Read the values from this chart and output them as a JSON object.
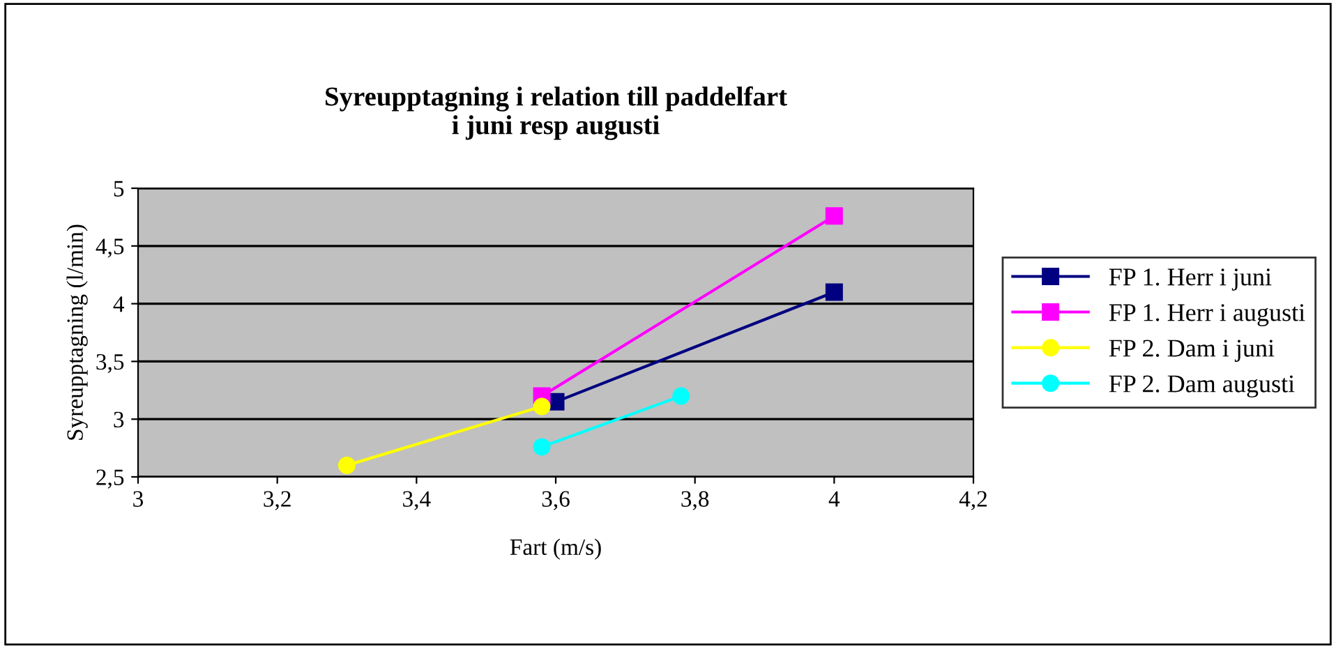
{
  "chart_data": {
    "type": "line",
    "title": "Syreupptagning i relation till paddelfart\ni juni resp augusti",
    "xlabel": "Fart (m/s)",
    "ylabel": "Syreupptagning (l/min)",
    "xlim": [
      3,
      4.2
    ],
    "xticks": [
      3,
      {
        "value": 3.2,
        "label": "3,2"
      },
      {
        "value": 3.4,
        "label": "3,4"
      },
      {
        "value": 3.6,
        "label": "3,6"
      },
      {
        "value": 3.8,
        "label": "3,8"
      },
      4,
      {
        "value": 4.2,
        "label": "4,2"
      }
    ],
    "ylim": [
      2.5,
      5
    ],
    "yticks": [
      {
        "value": 2.5,
        "label": "2,5"
      },
      3,
      {
        "value": 3.5,
        "label": "3,5"
      },
      4,
      {
        "value": 4.5,
        "label": "4,5"
      },
      5
    ],
    "grid": "y",
    "legend": "right",
    "series": [
      {
        "name": "FP 1. Herr i juni",
        "color": "#000080",
        "marker": "square",
        "x": [
          3.6,
          4.0
        ],
        "values": [
          3.15,
          4.1
        ]
      },
      {
        "name": "FP 1. Herr i augusti",
        "color": "#ff00ff",
        "marker": "square",
        "x": [
          3.58,
          4.0
        ],
        "values": [
          3.2,
          4.76
        ]
      },
      {
        "name": "FP 2. Dam i juni",
        "color": "#ffff00",
        "marker": "circle",
        "x": [
          3.3,
          3.58
        ],
        "values": [
          2.6,
          3.11
        ]
      },
      {
        "name": "FP 2. Dam augusti",
        "color": "#00ffff",
        "marker": "circle",
        "x": [
          3.58,
          3.78
        ],
        "values": [
          2.76,
          3.2
        ]
      }
    ]
  }
}
